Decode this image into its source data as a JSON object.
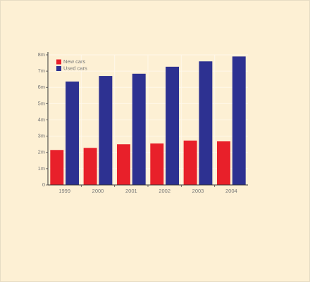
{
  "chart_data": {
    "type": "bar",
    "categories": [
      "1999",
      "2000",
      "2001",
      "2002",
      "2003",
      "2004"
    ],
    "series": [
      {
        "name": "New cars",
        "color": "#e8202a",
        "values": [
          2150000,
          2280000,
          2500000,
          2550000,
          2730000,
          2680000
        ]
      },
      {
        "name": "Used cars",
        "color": "#2d3191",
        "values": [
          6360000,
          6700000,
          6840000,
          7270000,
          7600000,
          7900000
        ]
      }
    ],
    "ylim": [
      0,
      8000000
    ],
    "yticks": [
      0,
      {
        "value": 1000000,
        "label": "1m"
      },
      {
        "value": 2000000,
        "label": "2m"
      },
      {
        "value": 3000000,
        "label": "3m"
      },
      {
        "value": 4000000,
        "label": "4m"
      },
      {
        "value": 5000000,
        "label": "5m"
      },
      {
        "value": 6000000,
        "label": "6m"
      },
      {
        "value": 7000000,
        "label": "7m"
      },
      {
        "value": 8000000,
        "label": "8m"
      }
    ],
    "grid": true,
    "legend": "upper left"
  }
}
